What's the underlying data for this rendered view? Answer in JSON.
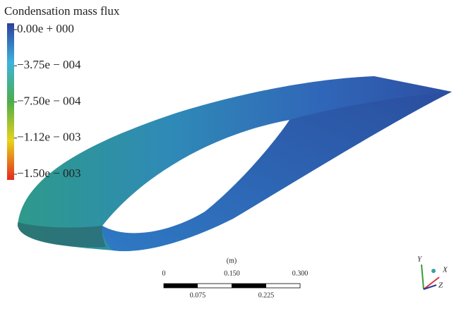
{
  "legend": {
    "title": "Condensation mass flux",
    "labels": [
      "0.00e + 000",
      "−3.75e − 004",
      "−7.50e − 004",
      "−1.12e − 003",
      "−1.50e − 003"
    ]
  },
  "scale": {
    "unit": "(m)",
    "top": [
      "0",
      "0.150",
      "0.300"
    ],
    "bottom": [
      "0.075",
      "0.225"
    ]
  },
  "triad": {
    "x": "X",
    "y": "Y",
    "z": "Z"
  }
}
